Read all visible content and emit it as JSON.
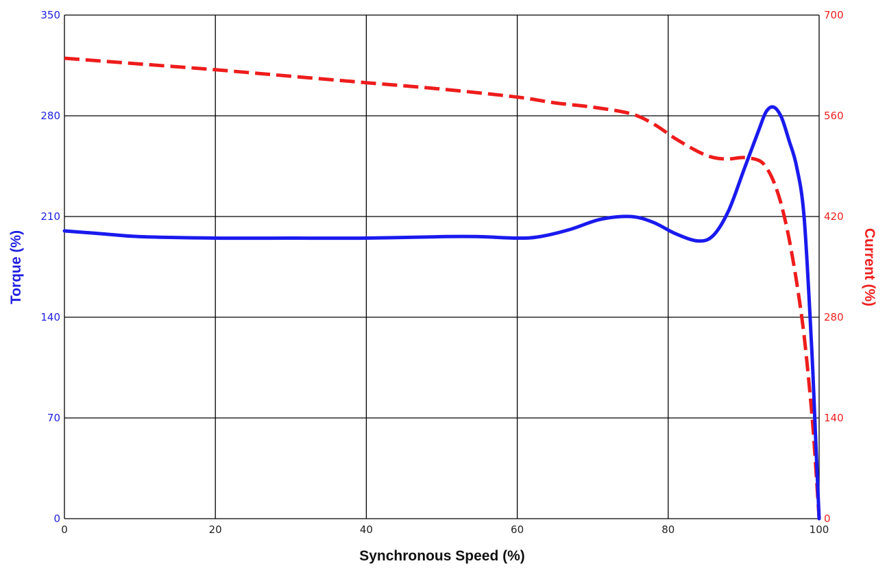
{
  "chart_data": {
    "type": "line",
    "xlabel": "Synchronous Speed (%)",
    "ylabel_left": "Torque (%)",
    "ylabel_right": "Current (%)",
    "xlim": [
      0,
      100
    ],
    "ylim_left": [
      0,
      350
    ],
    "ylim_right": [
      0,
      700
    ],
    "x_ticks": [
      "0",
      "20",
      "40",
      "60",
      "80",
      "100"
    ],
    "y_ticks_left": [
      "0",
      "70",
      "140",
      "210",
      "280",
      "350"
    ],
    "y_ticks_right": [
      "0",
      "140",
      "280",
      "420",
      "560",
      "700"
    ],
    "grid": true,
    "colors": {
      "torque": "#1a1aee",
      "current": "#ee1c1c",
      "left_axis_text": "#2020e0",
      "right_axis_text": "#ee2020"
    },
    "series": [
      {
        "axis": "left",
        "style": "solid",
        "x": [
          0,
          5,
          10,
          20,
          30,
          40,
          50,
          55,
          60,
          63,
          67,
          71,
          75,
          78,
          81,
          84,
          86,
          88,
          90,
          92,
          93,
          94,
          95,
          96,
          97,
          98,
          99,
          99.5,
          100
        ],
        "values": [
          200,
          198,
          196,
          195,
          195,
          195,
          196,
          196,
          195,
          196,
          201,
          208,
          210,
          206,
          198,
          193,
          197,
          214,
          242,
          270,
          283,
          286,
          279,
          263,
          245,
          210,
          120,
          60,
          0
        ]
      },
      {
        "axis": "right",
        "style": "dashed",
        "x": [
          0,
          10,
          20,
          30,
          40,
          50,
          60,
          65,
          70,
          75,
          78,
          81,
          84,
          86,
          88,
          90,
          92,
          93,
          94,
          95,
          96,
          97,
          98,
          99,
          99.5,
          100
        ],
        "values": [
          640,
          632,
          624,
          615,
          606,
          597,
          586,
          578,
          572,
          563,
          549,
          528,
          510,
          502,
          500,
          502,
          498,
          488,
          468,
          436,
          390,
          330,
          255,
          150,
          80,
          0
        ]
      }
    ]
  }
}
